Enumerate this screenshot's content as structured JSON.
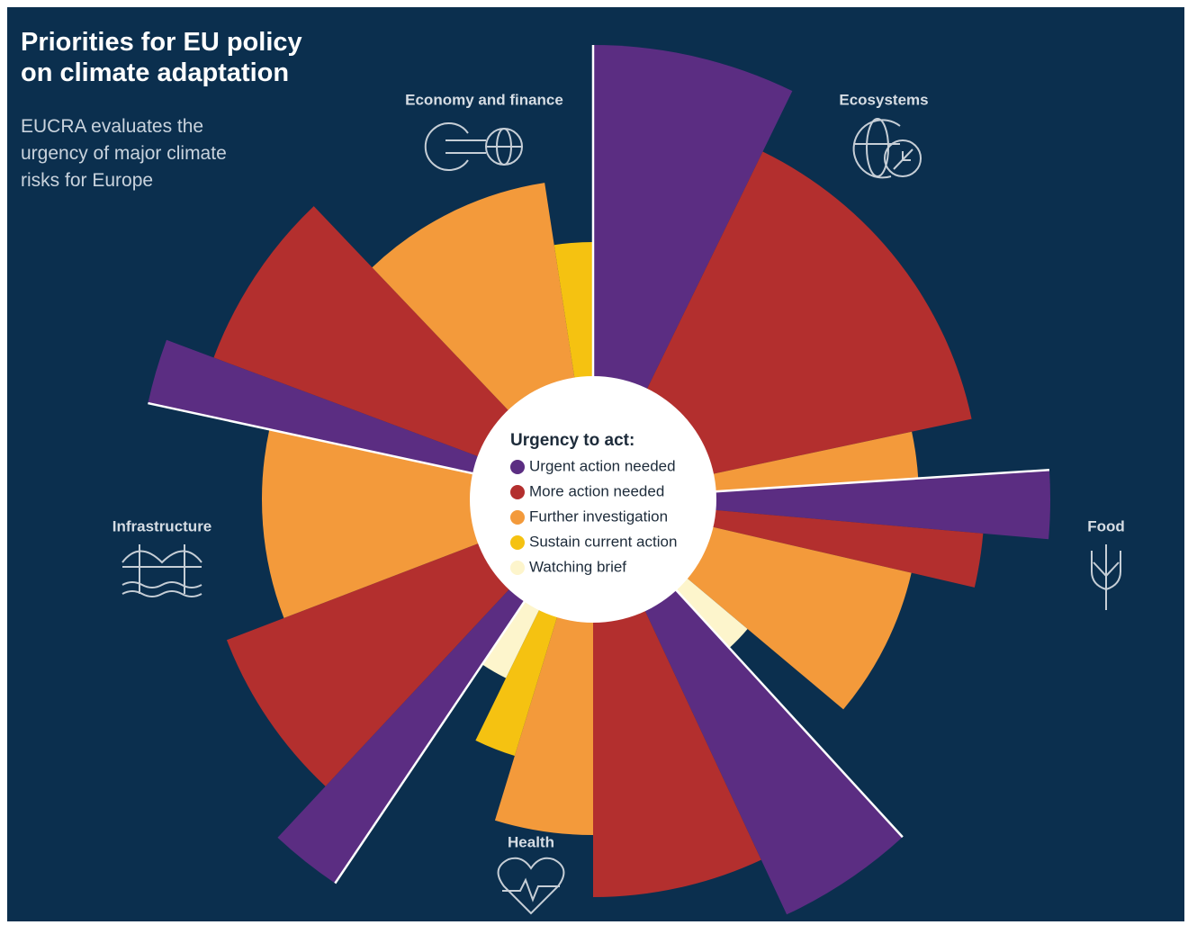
{
  "title": "Priorities for EU policy on climate adaptation",
  "subtitle": "EUCRA evaluates the urgency of major climate risks for Europe",
  "chart_data": {
    "type": "polar-bar",
    "rlim": [
      0,
      520
    ],
    "legend_title": "Urgency to act:",
    "levels": [
      {
        "name": "Urgent action needed",
        "color": "#5b2d82"
      },
      {
        "name": "More action needed",
        "color": "#b32f2e"
      },
      {
        "name": "Further investigation",
        "color": "#f39a3b"
      },
      {
        "name": "Sustain current action",
        "color": "#f5c211"
      },
      {
        "name": "Watching brief",
        "color": "#fdf5cc"
      }
    ],
    "groups": [
      {
        "name": "Ecosystems",
        "segments": [
          {
            "level": 0,
            "value": 505,
            "span": 26
          },
          {
            "level": 1,
            "value": 430,
            "span": 52
          },
          {
            "level": 2,
            "value": 362,
            "span": 8.3
          }
        ]
      },
      {
        "name": "Food",
        "segments": [
          {
            "level": 0,
            "value": 508,
            "span": 8.7
          },
          {
            "level": 1,
            "value": 435,
            "span": 8
          },
          {
            "level": 2,
            "value": 363,
            "span": 27
          },
          {
            "level": 4,
            "value": 224,
            "span": 7.5
          }
        ]
      },
      {
        "name": "Health",
        "segments": [
          {
            "level": 0,
            "value": 509,
            "span": 17.5
          },
          {
            "level": 1,
            "value": 442,
            "span": 25
          },
          {
            "level": 2,
            "value": 373,
            "span": 17
          },
          {
            "level": 3,
            "value": 298,
            "span": 9
          },
          {
            "level": 4,
            "value": 221,
            "span": 7.9
          }
        ]
      },
      {
        "name": "Infrastructure",
        "segments": [
          {
            "level": 0,
            "value": 514,
            "span": 9.1
          },
          {
            "level": 1,
            "value": 436,
            "span": 26
          },
          {
            "level": 2,
            "value": 368,
            "span": 33.2
          }
        ]
      },
      {
        "name": "Economy and finance",
        "segments": [
          {
            "level": 0,
            "value": 506,
            "span": 8.3
          },
          {
            "level": 1,
            "value": 450,
            "span": 25.9
          },
          {
            "level": 2,
            "value": 356,
            "span": 34.9
          },
          {
            "level": 3,
            "value": 286,
            "span": 8.7
          }
        ]
      }
    ]
  }
}
